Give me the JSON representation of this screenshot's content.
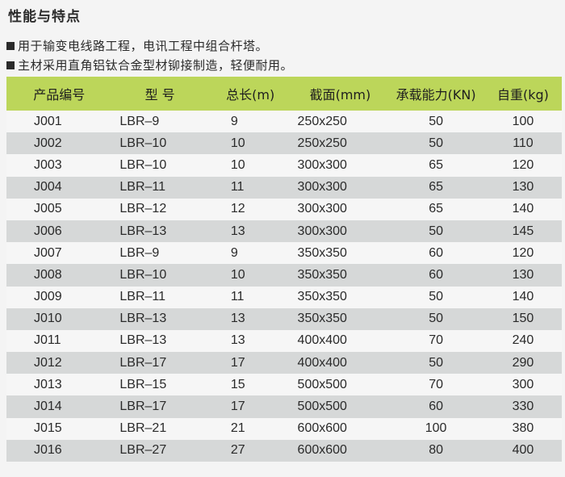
{
  "title": "性能与特点",
  "features": [
    "用于输变电线路工程，电讯工程中组合杆塔。",
    "主材采用直角铝钛合金型材铆接制造，轻便耐用。"
  ],
  "table": {
    "headers": [
      "产品编号",
      "型 号",
      "总长(m)",
      "截面(mm)",
      "承载能力(KN)",
      "自重(kg)"
    ],
    "rows": [
      [
        "J001",
        "LBR–9",
        "9",
        "250x250",
        "50",
        "100"
      ],
      [
        "J002",
        "LBR–10",
        "10",
        "250x250",
        "50",
        "110"
      ],
      [
        "J003",
        "LBR–10",
        "10",
        "300x300",
        "65",
        "120"
      ],
      [
        "J004",
        "LBR–11",
        "11",
        "300x300",
        "65",
        "130"
      ],
      [
        "J005",
        "LBR–12",
        "12",
        "300x300",
        "65",
        "140"
      ],
      [
        "J006",
        "LBR–13",
        "13",
        "300x300",
        "50",
        "145"
      ],
      [
        "J007",
        "LBR–9",
        "9",
        "350x350",
        "60",
        "120"
      ],
      [
        "J008",
        "LBR–10",
        "10",
        "350x350",
        "60",
        "130"
      ],
      [
        "J009",
        "LBR–11",
        "11",
        "350x350",
        "50",
        "140"
      ],
      [
        "J010",
        "LBR–13",
        "13",
        "350x350",
        "50",
        "150"
      ],
      [
        "J011",
        "LBR–13",
        "13",
        "400x400",
        "70",
        "240"
      ],
      [
        "J012",
        "LBR–17",
        "17",
        "400x400",
        "50",
        "290"
      ],
      [
        "J013",
        "LBR–15",
        "15",
        "500x500",
        "70",
        "300"
      ],
      [
        "J014",
        "LBR–17",
        "17",
        "500x500",
        "60",
        "330"
      ],
      [
        "J015",
        "LBR–21",
        "21",
        "600x600",
        "100",
        "380"
      ],
      [
        "J016",
        "LBR–27",
        "27",
        "600x600",
        "80",
        "400"
      ]
    ]
  },
  "colors": {
    "header_bg": "#bcd65a",
    "stripe_bg": "#d6d8d8"
  }
}
